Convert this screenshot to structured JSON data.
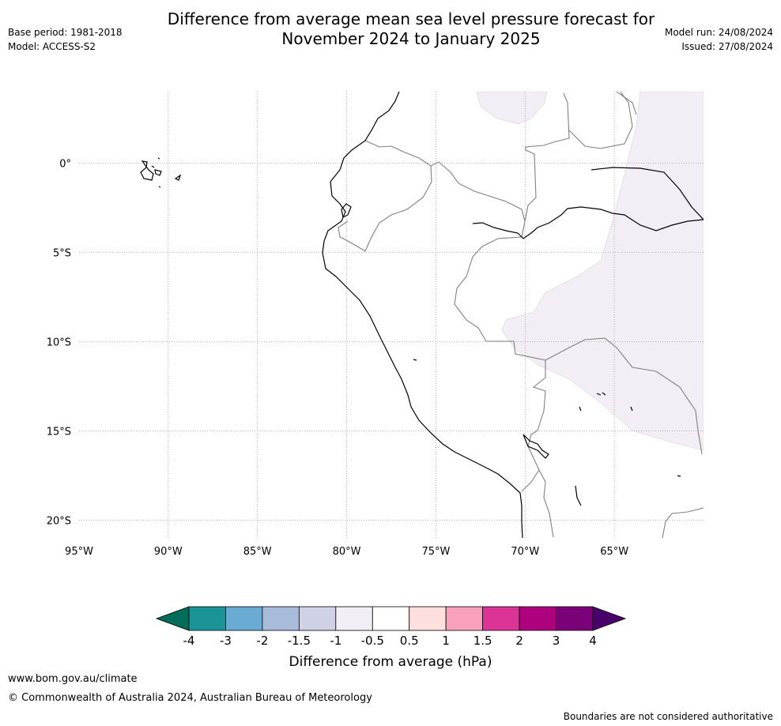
{
  "header": {
    "title_line1": "Difference from average mean sea level pressure forecast for",
    "title_line2": "November 2024 to January 2025",
    "base_period": "Base period: 1981-2018",
    "model": "Model: ACCESS-S2",
    "model_run": "Model run: 24/08/2024",
    "issued": "Issued: 27/08/2024"
  },
  "map": {
    "lon_range": [
      -95,
      -60
    ],
    "lat_range": [
      -21,
      4
    ],
    "lon_ticks": [
      {
        "value": -95,
        "label": "95°W"
      },
      {
        "value": -90,
        "label": "90°W"
      },
      {
        "value": -85,
        "label": "85°W"
      },
      {
        "value": -80,
        "label": "80°W"
      },
      {
        "value": -75,
        "label": "75°W"
      },
      {
        "value": -70,
        "label": "70°W"
      },
      {
        "value": -65,
        "label": "65°W"
      }
    ],
    "lat_ticks": [
      {
        "value": 0,
        "label": "0°"
      },
      {
        "value": -5,
        "label": "5°S"
      },
      {
        "value": -10,
        "label": "10°S"
      },
      {
        "value": -15,
        "label": "15°S"
      },
      {
        "value": -20,
        "label": "20°S"
      }
    ],
    "anomaly_fill_color": "#f3eef5",
    "coast_color": "#000000",
    "border_color": "#808080"
  },
  "colorbar": {
    "label": "Difference from average (hPa)",
    "ticks": [
      "-4",
      "-3",
      "-2",
      "-1.5",
      "-1",
      "-0.5",
      "0.5",
      "1",
      "1.5",
      "2",
      "3",
      "4"
    ],
    "colors": [
      "#1a9496",
      "#6aabd4",
      "#a8bbdb",
      "#cfd1e6",
      "#f3eef5",
      "#ffffff",
      "#fde0de",
      "#f9a1bc",
      "#dc3397",
      "#ae017e",
      "#7a0177"
    ],
    "under_color": "#016c59",
    "over_color": "#49006a"
  },
  "footer": {
    "url": "www.bom.gov.au/climate",
    "copyright": "© Commonwealth of Australia 2024, Australian Bureau of Meteorology",
    "note": "Boundaries are not considered authoritative"
  }
}
